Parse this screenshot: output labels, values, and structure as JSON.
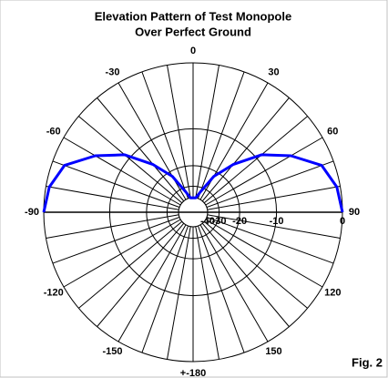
{
  "chart_data": {
    "type": "polar",
    "title": "Elevation Pattern of Test Monopole",
    "subtitle": "Over Perfect Ground",
    "annotation": "Fig. 2",
    "theta": [
      -90,
      -80,
      -70,
      -60,
      -50,
      -40,
      -30,
      -20,
      -10,
      0,
      10,
      20,
      30,
      40,
      50,
      60,
      70,
      80,
      90
    ],
    "series": [
      {
        "color": "#0000ff",
        "values": [
          0,
          -0.4,
          -1.5,
          -4.8,
          -8.8,
          -15,
          -22,
          -33,
          -40,
          -40,
          -40,
          -33,
          -22,
          -15,
          -8.8,
          -4.8,
          -1.5,
          -0.4,
          0
        ]
      }
    ],
    "rlim": [
      -40,
      0
    ],
    "rticks": [
      0,
      -10,
      -20,
      -30,
      -40
    ],
    "thetaticks": [
      0,
      30,
      60,
      90,
      120,
      150,
      {
        "value": 180,
        "label": "+-180"
      },
      -150,
      -120,
      -90,
      -60,
      -30
    ],
    "grid": true
  }
}
